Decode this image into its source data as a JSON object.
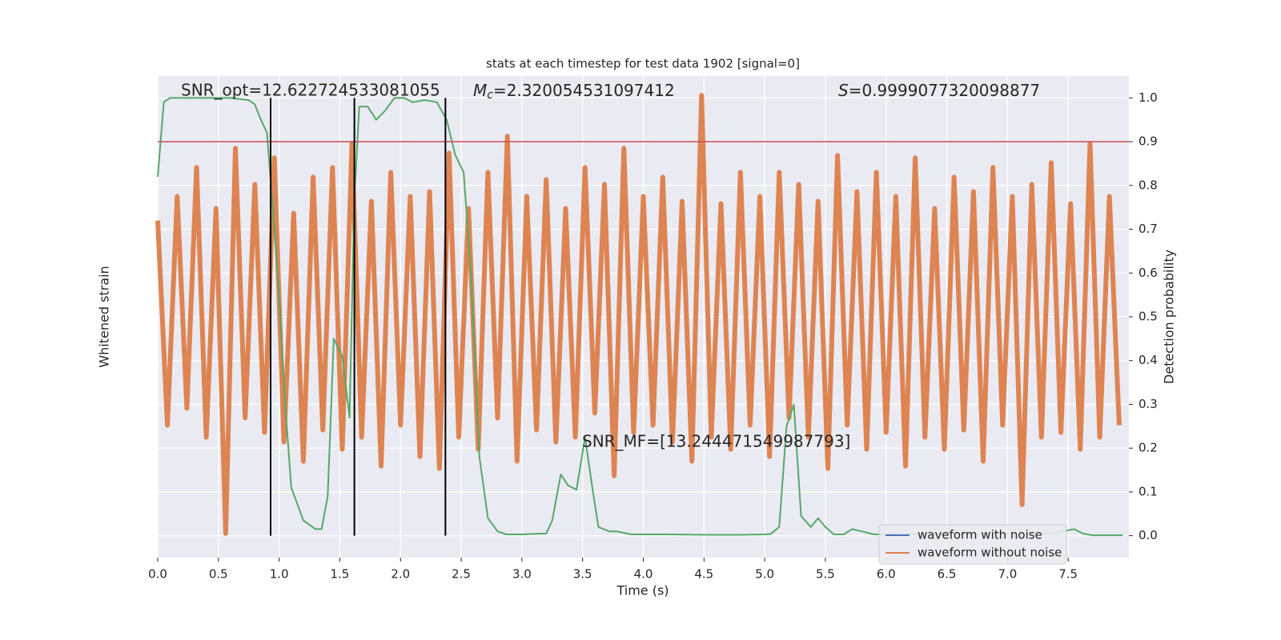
{
  "chart_data": {
    "type": "line",
    "title": "stats at each timestep for test data 1902 [signal=0]",
    "xlabel": "Time (s)",
    "ylabel": "Whitened strain",
    "y2label": "Detection probability",
    "xlim": [
      0,
      8
    ],
    "xticks": [
      {
        "value": 0,
        "label": "0.0"
      },
      {
        "value": 0.5,
        "label": "0.5"
      },
      {
        "value": 1,
        "label": "1.0"
      },
      {
        "value": 1.5,
        "label": "1.5"
      },
      {
        "value": 2,
        "label": "2.0"
      },
      {
        "value": 2.5,
        "label": "2.5"
      },
      {
        "value": 3,
        "label": "3.0"
      },
      {
        "value": 3.5,
        "label": "3.5"
      },
      {
        "value": 4,
        "label": "4.0"
      },
      {
        "value": 4.5,
        "label": "4.5"
      },
      {
        "value": 5,
        "label": "5.0"
      },
      {
        "value": 5.5,
        "label": "5.5"
      },
      {
        "value": 6,
        "label": "6.0"
      },
      {
        "value": 6.5,
        "label": "6.5"
      },
      {
        "value": 7,
        "label": "7.0"
      },
      {
        "value": 7.5,
        "label": "7.5"
      }
    ],
    "ylim": [
      -1,
      1
    ],
    "y2lim": [
      -0.05,
      1.05
    ],
    "y2ticks": [
      {
        "value": 0,
        "label": "0.0"
      },
      {
        "value": 0.1,
        "label": "0.1"
      },
      {
        "value": 0.2,
        "label": "0.2"
      },
      {
        "value": 0.3,
        "label": "0.3"
      },
      {
        "value": 0.4,
        "label": "0.4"
      },
      {
        "value": 0.5,
        "label": "0.5"
      },
      {
        "value": 0.6,
        "label": "0.6"
      },
      {
        "value": 0.7,
        "label": "0.7"
      },
      {
        "value": 0.8,
        "label": "0.8"
      },
      {
        "value": 0.9,
        "label": "0.9"
      },
      {
        "value": 1,
        "label": "1.0"
      }
    ],
    "grid": true,
    "legend": "lower right",
    "series": [
      {
        "name": "waveform with noise",
        "color": "#4c72b0"
      },
      {
        "name": "waveform without noise",
        "color": "#dd8452",
        "x": [
          0,
          0.08,
          0.16,
          0.24,
          0.32,
          0.4,
          0.48,
          0.56,
          0.64,
          0.72,
          0.8,
          0.88,
          0.96,
          1.04,
          1.12,
          1.2,
          1.28,
          1.36,
          1.44,
          1.52,
          1.6,
          1.68,
          1.76,
          1.84,
          1.92,
          2,
          2.08,
          2.16,
          2.24,
          2.32,
          2.4,
          2.48,
          2.56,
          2.64,
          2.72,
          2.8,
          2.88,
          2.96,
          3.04,
          3.12,
          3.2,
          3.28,
          3.36,
          3.44,
          3.52,
          3.6,
          3.68,
          3.76,
          3.84,
          3.92,
          4,
          4.08,
          4.16,
          4.24,
          4.32,
          4.4,
          4.48,
          4.56,
          4.64,
          4.72,
          4.8,
          4.88,
          4.96,
          5.04,
          5.12,
          5.2,
          5.28,
          5.36,
          5.44,
          5.52,
          5.6,
          5.68,
          5.76,
          5.84,
          5.92,
          6,
          6.08,
          6.16,
          6.24,
          6.32,
          6.4,
          6.48,
          6.56,
          6.64,
          6.72,
          6.8,
          6.88,
          6.96,
          7.04,
          7.12,
          7.2,
          7.28,
          7.36,
          7.44,
          7.52,
          7.6,
          7.68,
          7.76,
          7.84,
          7.92
        ],
        "values": [
          0.4,
          -0.45,
          0.5,
          -0.38,
          0.62,
          -0.5,
          0.45,
          -0.9,
          0.7,
          -0.42,
          0.55,
          -0.48,
          0.66,
          -0.52,
          0.43,
          -0.6,
          0.58,
          -0.47,
          0.62,
          -0.55,
          0.72,
          -0.5,
          0.48,
          -0.62,
          0.6,
          -0.45,
          0.5,
          -0.58,
          0.52,
          -0.63,
          0.68,
          -0.5,
          0.45,
          -0.55,
          0.6,
          -0.42,
          0.75,
          -0.6,
          0.5,
          -0.47,
          0.57,
          -0.52,
          0.45,
          -0.5,
          0.62,
          -0.4,
          0.55,
          -0.66,
          0.7,
          -0.48,
          0.5,
          -0.45,
          0.58,
          -0.52,
          0.48,
          -0.6,
          0.92,
          -0.5,
          0.47,
          -0.55,
          0.6,
          -0.45,
          0.5,
          -0.58,
          0.6,
          -0.42,
          0.55,
          -0.5,
          0.48,
          -0.63,
          0.67,
          -0.45,
          0.52,
          -0.55,
          0.6,
          -0.48,
          0.5,
          -0.62,
          0.66,
          -0.5,
          0.45,
          -0.55,
          0.58,
          -0.47,
          0.52,
          -0.6,
          0.62,
          -0.45,
          0.5,
          -0.78,
          0.55,
          -0.5,
          0.64,
          -0.48,
          0.47,
          -0.55,
          0.72,
          -0.5,
          0.5,
          -0.45
        ]
      },
      {
        "color": "#55a868",
        "axis": "y2",
        "x": [
          0,
          0.05,
          0.1,
          0.3,
          0.6,
          0.75,
          0.8,
          0.85,
          0.9,
          0.95,
          1,
          1.05,
          1.1,
          1.2,
          1.3,
          1.35,
          1.4,
          1.45,
          1.52,
          1.58,
          1.62,
          1.66,
          1.73,
          1.8,
          1.87,
          1.95,
          2.03,
          2.1,
          2.2,
          2.3,
          2.38,
          2.45,
          2.52,
          2.58,
          2.65,
          2.72,
          2.8,
          2.87,
          3,
          3.1,
          3.2,
          3.25,
          3.32,
          3.38,
          3.45,
          3.52,
          3.58,
          3.63,
          3.72,
          3.78,
          3.9,
          4,
          4.2,
          4.5,
          4.8,
          5,
          5.05,
          5.12,
          5.18,
          5.24,
          5.3,
          5.38,
          5.44,
          5.5,
          5.57,
          5.65,
          5.72,
          5.8,
          5.9,
          6,
          6.2,
          6.5,
          6.8,
          7,
          7.2,
          7.35,
          7.45,
          7.55,
          7.62,
          7.7,
          7.95
        ],
        "values": [
          0.82,
          0.99,
          1,
          1,
          1,
          0.995,
          0.985,
          0.95,
          0.92,
          0.74,
          0.55,
          0.3,
          0.11,
          0.035,
          0.015,
          0.015,
          0.09,
          0.45,
          0.41,
          0.27,
          0.77,
          0.98,
          0.98,
          0.95,
          0.97,
          1,
          1,
          0.99,
          0.995,
          0.99,
          0.95,
          0.87,
          0.83,
          0.6,
          0.18,
          0.04,
          0.01,
          0.003,
          0.003,
          0.004,
          0.005,
          0.035,
          0.14,
          0.115,
          0.105,
          0.225,
          0.11,
          0.02,
          0.01,
          0.01,
          0.003,
          0.003,
          0.003,
          0.002,
          0.002,
          0.003,
          0.004,
          0.02,
          0.25,
          0.3,
          0.045,
          0.02,
          0.04,
          0.02,
          0.003,
          0.003,
          0.015,
          0.01,
          0.003,
          0.003,
          0.004,
          0.004,
          0.004,
          0.005,
          0.005,
          0.005,
          0.01,
          0.015,
          0.005,
          0.001,
          0.001
        ]
      }
    ],
    "threshold": {
      "value": 0.9,
      "color": "#c44e52",
      "axis": "y2"
    },
    "vlines": {
      "x": [
        0.93,
        1.62,
        2.37
      ],
      "color": "#000000"
    },
    "annotations": [
      "SNR_opt=12.622724533081055",
      {
        "symbol": "M",
        "subscript": "c",
        "text": "=2.320054531097412"
      },
      {
        "symbol": "S",
        "text": "=0.9999077320098877"
      },
      "SNR_MF=[13.244471549987793]"
    ]
  }
}
